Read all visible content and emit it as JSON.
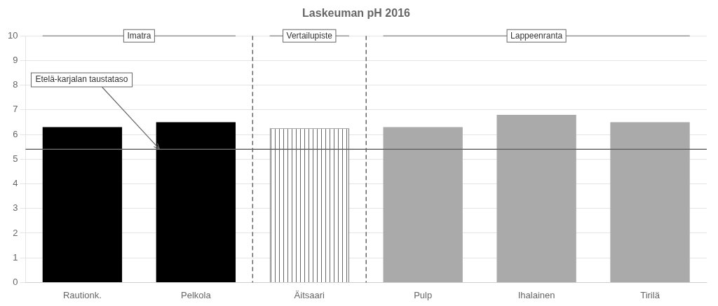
{
  "chart_data": {
    "type": "bar",
    "title": "Laskeuman pH 2016",
    "categories": [
      "Rautionk.",
      "Pelkola",
      "Äitsaari",
      "Pulp",
      "Ihalainen",
      "Tirilä"
    ],
    "values": [
      6.3,
      6.5,
      6.25,
      6.3,
      6.8,
      6.5
    ],
    "colors": [
      "#000000",
      "#000000",
      "striped",
      "#aaaaaa",
      "#aaaaaa",
      "#aaaaaa"
    ],
    "ylim": [
      0,
      10
    ],
    "yticks": [
      0,
      1,
      2,
      3,
      4,
      5,
      6,
      7,
      8,
      9,
      10
    ],
    "grid": true,
    "reference_line": {
      "value": 5.4,
      "label": "Etelä-karjalan taustataso"
    },
    "groups": [
      {
        "label": "Imatra",
        "categories": [
          "Rautionk.",
          "Pelkola"
        ]
      },
      {
        "label": "Vertailupiste",
        "categories": [
          "Äitsaari"
        ]
      },
      {
        "label": "Lappeenranta",
        "categories": [
          "Pulp",
          "Ihalainen",
          "Tirilä"
        ]
      }
    ]
  }
}
